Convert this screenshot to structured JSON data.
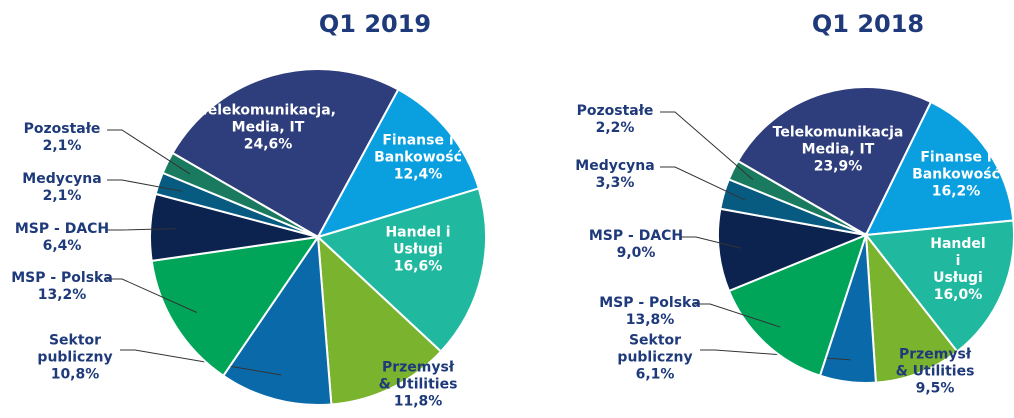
{
  "chart_data": [
    {
      "type": "pie",
      "title": "Q1 2019",
      "categories": [
        "Telekomunikacja,\nMedia, IT",
        "Finanse i\nBankowość",
        "Handel i\nUsługi",
        "Przemysł\n& Utilities",
        "Sektor\npubliczny",
        "MSP - Polska",
        "MSP - DACH",
        "Medycyna",
        "Pozostałe"
      ],
      "values": [
        24.6,
        12.4,
        16.6,
        11.8,
        10.8,
        13.2,
        6.4,
        2.1,
        2.1
      ],
      "value_labels": [
        "24,6%",
        "12,4%",
        "16,6%",
        "11,8%",
        "10,8%",
        "13,2%",
        "6,4%",
        "2,1%",
        "2,1%"
      ],
      "colors": [
        "#2e3d7c",
        "#0aa0e0",
        "#20b9a0",
        "#7ab32e",
        "#0a6aa9",
        "#00a55a",
        "#0c2350",
        "#085b80",
        "#1a7a5f"
      ]
    },
    {
      "type": "pie",
      "title": "Q1 2018",
      "categories": [
        "Telekomunikacja\nMedia, IT",
        "Finanse i\nBankowość",
        "Handel i\nUsługi",
        "Przemysł\n& Utilities",
        "Sektor\npubliczny",
        "MSP - Polska",
        "MSP - DACH",
        "Medycyna",
        "Pozostałe"
      ],
      "values": [
        23.9,
        16.2,
        16.0,
        9.5,
        6.1,
        13.8,
        9.0,
        3.3,
        2.2
      ],
      "value_labels": [
        "23,9%",
        "16,2%",
        "16,0%",
        "9,5%",
        "6,1%",
        "13,8%",
        "9,0%",
        "3,3%",
        "2,2%"
      ],
      "colors": [
        "#2e3d7c",
        "#0aa0e0",
        "#20b9a0",
        "#7ab32e",
        "#0a6aa9",
        "#00a55a",
        "#0c2350",
        "#085b80",
        "#1a7a5f"
      ]
    }
  ]
}
